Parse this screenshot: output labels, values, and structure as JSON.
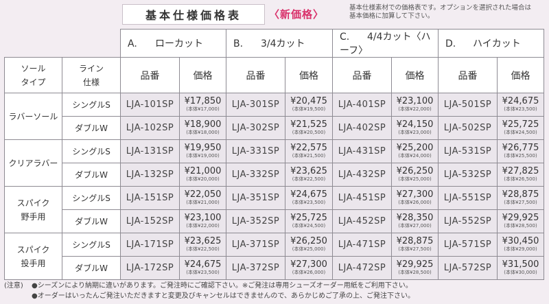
{
  "header": {
    "title": "基本仕様価格表",
    "new_price": "〈新価格〉",
    "note_line1": "基本仕様素材での価格表です。オプションを選択された場合は",
    "note_line2": "基本価格に加算して下さい。"
  },
  "columns": {
    "sole_type": "ソール\nタイプ",
    "line": "ライン\n仕様",
    "code_label": "品番",
    "price_label": "価格",
    "categories": [
      {
        "letter": "A.",
        "name": "ローカット"
      },
      {
        "letter": "B.",
        "name": "3/4カット"
      },
      {
        "letter": "C.",
        "name": "4/4カット〈ハーフ〉"
      },
      {
        "letter": "D.",
        "name": "ハイカット"
      }
    ]
  },
  "groups": [
    {
      "sole": "ラバーソール",
      "rows": [
        {
          "line": "シングルS",
          "items": [
            {
              "code": "LJA-101SP",
              "price": "¥17,850",
              "base": "(本体¥17,000)"
            },
            {
              "code": "LJA-301SP",
              "price": "¥20,475",
              "base": "(本体¥19,500)"
            },
            {
              "code": "LJA-401SP",
              "price": "¥23,100",
              "base": "(本体¥22,000)"
            },
            {
              "code": "LJA-501SP",
              "price": "¥24,675",
              "base": "(本体¥23,500)"
            }
          ]
        },
        {
          "line": "ダブルW",
          "items": [
            {
              "code": "LJA-102SP",
              "price": "¥18,900",
              "base": "(本体¥18,000)"
            },
            {
              "code": "LJA-302SP",
              "price": "¥21,525",
              "base": "(本体¥20,500)"
            },
            {
              "code": "LJA-402SP",
              "price": "¥24,150",
              "base": "(本体¥23,000)"
            },
            {
              "code": "LJA-502SP",
              "price": "¥25,725",
              "base": "(本体¥24,500)"
            }
          ]
        }
      ]
    },
    {
      "sole": "クリアラバー",
      "rows": [
        {
          "line": "シングルS",
          "items": [
            {
              "code": "LJA-131SP",
              "price": "¥19,950",
              "base": "(本体¥19,000)"
            },
            {
              "code": "LJA-331SP",
              "price": "¥22,575",
              "base": "(本体¥21,500)"
            },
            {
              "code": "LJA-431SP",
              "price": "¥25,200",
              "base": "(本体¥24,000)"
            },
            {
              "code": "LJA-531SP",
              "price": "¥26,775",
              "base": "(本体¥25,500)"
            }
          ]
        },
        {
          "line": "ダブルW",
          "items": [
            {
              "code": "LJA-132SP",
              "price": "¥21,000",
              "base": "(本体¥20,000)"
            },
            {
              "code": "LJA-332SP",
              "price": "¥23,625",
              "base": "(本体¥22,500)"
            },
            {
              "code": "LJA-432SP",
              "price": "¥26,250",
              "base": "(本体¥25,000)"
            },
            {
              "code": "LJA-532SP",
              "price": "¥27,825",
              "base": "(本体¥26,500)"
            }
          ]
        }
      ]
    },
    {
      "sole": "スパイク\n野手用",
      "rows": [
        {
          "line": "シングルS",
          "items": [
            {
              "code": "LJA-151SP",
              "price": "¥22,050",
              "base": "(本体¥21,000)"
            },
            {
              "code": "LJA-351SP",
              "price": "¥24,675",
              "base": "(本体¥23,500)"
            },
            {
              "code": "LJA-451SP",
              "price": "¥27,300",
              "base": "(本体¥26,000)"
            },
            {
              "code": "LJA-551SP",
              "price": "¥28,875",
              "base": "(本体¥27,500)"
            }
          ]
        },
        {
          "line": "ダブルW",
          "items": [
            {
              "code": "LJA-152SP",
              "price": "¥23,100",
              "base": "(本体¥22,000)"
            },
            {
              "code": "LJA-352SP",
              "price": "¥25,725",
              "base": "(本体¥24,500)"
            },
            {
              "code": "LJA-452SP",
              "price": "¥28,350",
              "base": "(本体¥27,000)"
            },
            {
              "code": "LJA-552SP",
              "price": "¥29,925",
              "base": "(本体¥28,500)"
            }
          ]
        }
      ]
    },
    {
      "sole": "スパイク\n投手用",
      "rows": [
        {
          "line": "シングルS",
          "items": [
            {
              "code": "LJA-171SP",
              "price": "¥23,625",
              "base": "(本体¥22,500)"
            },
            {
              "code": "LJA-371SP",
              "price": "¥26,250",
              "base": "(本体¥25,000)"
            },
            {
              "code": "LJA-471SP",
              "price": "¥28,875",
              "base": "(本体¥27,500)"
            },
            {
              "code": "LJA-571SP",
              "price": "¥30,450",
              "base": "(本体¥29,000)"
            }
          ]
        },
        {
          "line": "ダブルW",
          "items": [
            {
              "code": "LJA-172SP",
              "price": "¥24,675",
              "base": "(本体¥23,500)"
            },
            {
              "code": "LJA-372SP",
              "price": "¥27,300",
              "base": "(本体¥26,000)"
            },
            {
              "code": "LJA-472SP",
              "price": "¥29,925",
              "base": "(本体¥28,500)"
            },
            {
              "code": "LJA-572SP",
              "price": "¥31,500",
              "base": "(本体¥30,000)"
            }
          ]
        }
      ]
    }
  ],
  "notes": {
    "label": "(注意)",
    "line1": "●シーズンにより納期に違いがあります。ご発注時にご確認下さい。※ご発注は専用シューズオーダー用紙をご利用下さい。",
    "line2": "●オーダーはいったんご発注いただきますと変更及びキャンセルはできませんので、あらかじめご了承の上、ご発注下さい。"
  }
}
